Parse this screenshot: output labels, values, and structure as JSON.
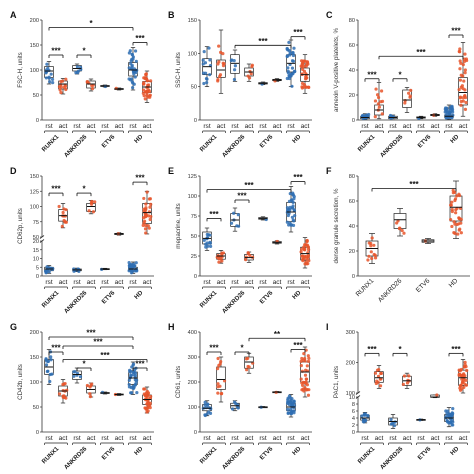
{
  "colors": {
    "rst": "#2f6fb3",
    "act": "#e8552a",
    "bar": "#111111"
  },
  "chart_data": [
    {
      "letter": "A",
      "type": "box",
      "ylabel": "FSC-H, units",
      "ylim": [
        0,
        200
      ],
      "yticks": [
        "0",
        "50",
        "100",
        "150",
        "200"
      ],
      "break": null,
      "categories": [
        "rst",
        "act",
        "rst",
        "act",
        "rst",
        "act",
        "rst",
        "act"
      ],
      "groups": [
        "RUNX1",
        "ANKRD26",
        "ETV6",
        "HD"
      ],
      "series": [
        {
          "name": "rst",
          "med": 98,
          "q1": 85,
          "q3": 107,
          "min": 72,
          "max": 117,
          "n": 14
        },
        {
          "name": "act",
          "med": 72,
          "q1": 62,
          "q3": 78,
          "min": 52,
          "max": 83,
          "n": 12
        },
        {
          "name": "rst",
          "med": 103,
          "q1": 98,
          "q3": 109,
          "min": 92,
          "max": 112,
          "n": 6
        },
        {
          "name": "act",
          "med": 72,
          "q1": 64,
          "q3": 78,
          "min": 58,
          "max": 82,
          "n": 6
        },
        {
          "name": "rst",
          "med": 68,
          "q1": 67,
          "q3": 69,
          "min": 66,
          "max": 70,
          "n": 1
        },
        {
          "name": "act",
          "med": 62,
          "q1": 61,
          "q3": 63,
          "min": 60,
          "max": 64,
          "n": 1
        },
        {
          "name": "rst",
          "med": 100,
          "q1": 88,
          "q3": 115,
          "min": 60,
          "max": 145,
          "n": 34
        },
        {
          "name": "act",
          "med": 66,
          "q1": 55,
          "q3": 77,
          "min": 35,
          "max": 98,
          "n": 34
        }
      ],
      "brackets": [
        {
          "from": 0,
          "to": 1,
          "label": "***",
          "y": 130
        },
        {
          "from": 2,
          "to": 3,
          "label": "*",
          "y": 130
        },
        {
          "from": 6,
          "to": 7,
          "label": "***",
          "y": 155
        },
        {
          "from": 0,
          "to": 6,
          "label": "*",
          "y": 185
        }
      ]
    },
    {
      "letter": "B",
      "type": "box",
      "ylabel": "SSC-H, units",
      "ylim": [
        0,
        150
      ],
      "yticks": [
        "0",
        "50",
        "100",
        "150"
      ],
      "break": null,
      "categories": [
        "rst",
        "act",
        "rst",
        "act",
        "rst",
        "act",
        "rst",
        "act"
      ],
      "groups": [
        "RUNX1",
        "ANKRD26",
        "ETV6",
        "HD"
      ],
      "series": [
        {
          "name": "rst",
          "med": 80,
          "q1": 68,
          "q3": 92,
          "min": 50,
          "max": 110,
          "n": 14
        },
        {
          "name": "act",
          "med": 75,
          "q1": 64,
          "q3": 90,
          "min": 40,
          "max": 135,
          "n": 12
        },
        {
          "name": "rst",
          "med": 85,
          "q1": 70,
          "q3": 98,
          "min": 58,
          "max": 105,
          "n": 6
        },
        {
          "name": "act",
          "med": 72,
          "q1": 66,
          "q3": 78,
          "min": 58,
          "max": 84,
          "n": 6
        },
        {
          "name": "rst",
          "med": 55,
          "q1": 54,
          "q3": 56,
          "min": 53,
          "max": 57,
          "n": 1
        },
        {
          "name": "act",
          "med": 60,
          "q1": 59,
          "q3": 61,
          "min": 58,
          "max": 62,
          "n": 1
        },
        {
          "name": "rst",
          "med": 85,
          "q1": 72,
          "q3": 98,
          "min": 50,
          "max": 120,
          "n": 34
        },
        {
          "name": "act",
          "med": 68,
          "q1": 58,
          "q3": 78,
          "min": 40,
          "max": 98,
          "n": 34
        }
      ],
      "brackets": [
        {
          "from": 2,
          "to": 6,
          "label": "***",
          "y": 112
        },
        {
          "from": 6,
          "to": 7,
          "label": "***",
          "y": 125
        }
      ]
    },
    {
      "letter": "C",
      "type": "box",
      "ylabel": "annexin V-positive platelets, %",
      "ylim": [
        0,
        80
      ],
      "yticks": [
        "0",
        "20",
        "40",
        "60",
        "80"
      ],
      "break": null,
      "categories": [
        "rst",
        "act",
        "rst",
        "act",
        "rst",
        "act",
        "rst",
        "act"
      ],
      "groups": [
        "RUNX1",
        "ANKRD26",
        "ETV6",
        "HD"
      ],
      "series": [
        {
          "name": "rst",
          "med": 2,
          "q1": 1,
          "q3": 3,
          "min": 0.5,
          "max": 5,
          "n": 14
        },
        {
          "name": "act",
          "med": 8,
          "q1": 4,
          "q3": 12,
          "min": 1,
          "max": 30,
          "n": 12
        },
        {
          "name": "rst",
          "med": 2,
          "q1": 1,
          "q3": 3,
          "min": 1,
          "max": 4,
          "n": 6
        },
        {
          "name": "act",
          "med": 16,
          "q1": 10,
          "q3": 24,
          "min": 6,
          "max": 26,
          "n": 6
        },
        {
          "name": "rst",
          "med": 2,
          "q1": 1.5,
          "q3": 2.5,
          "min": 1,
          "max": 3,
          "n": 1
        },
        {
          "name": "act",
          "med": 4,
          "q1": 3.5,
          "q3": 4.5,
          "min": 3,
          "max": 5,
          "n": 1
        },
        {
          "name": "rst",
          "med": 3,
          "q1": 2,
          "q3": 4,
          "min": 0.5,
          "max": 12,
          "n": 34
        },
        {
          "name": "act",
          "med": 22,
          "q1": 12,
          "q3": 34,
          "min": 3,
          "max": 62,
          "n": 34
        }
      ],
      "brackets": [
        {
          "from": 0,
          "to": 1,
          "label": "***",
          "y": 33
        },
        {
          "from": 2,
          "to": 3,
          "label": "*",
          "y": 33
        },
        {
          "from": 6,
          "to": 7,
          "label": "***",
          "y": 68
        },
        {
          "from": 1,
          "to": 7,
          "label": "***",
          "y": 51
        }
      ]
    },
    {
      "letter": "D",
      "type": "box",
      "ylabel": "CD62p, units",
      "ylim": [
        0,
        150
      ],
      "yticks": [
        "0",
        "5",
        "10",
        "15",
        "20",
        "50",
        "75",
        "100",
        "125",
        "150"
      ],
      "break": {
        "low": 20,
        "high": 50
      },
      "categories": [
        "rst",
        "act",
        "rst",
        "act",
        "rst",
        "act",
        "rst",
        "act"
      ],
      "groups": [
        "RUNX1",
        "ANKRD26",
        "ETV6",
        "HD"
      ],
      "series": [
        {
          "name": "rst",
          "med": 4,
          "q1": 3,
          "q3": 5,
          "min": 1.5,
          "max": 6,
          "n": 14
        },
        {
          "name": "act",
          "med": 85,
          "q1": 76,
          "q3": 95,
          "min": 65,
          "max": 105,
          "n": 12
        },
        {
          "name": "rst",
          "med": 3.5,
          "q1": 3,
          "q3": 4,
          "min": 2.5,
          "max": 4.5,
          "n": 6
        },
        {
          "name": "act",
          "med": 100,
          "q1": 92,
          "q3": 105,
          "min": 88,
          "max": 110,
          "n": 6
        },
        {
          "name": "rst",
          "med": 4,
          "q1": 3.8,
          "q3": 4.2,
          "min": 3.6,
          "max": 4.4,
          "n": 1
        },
        {
          "name": "act",
          "med": 55,
          "q1": 54,
          "q3": 56,
          "min": 53,
          "max": 57,
          "n": 1
        },
        {
          "name": "rst",
          "med": 4,
          "q1": 3,
          "q3": 5,
          "min": 1.5,
          "max": 8,
          "n": 34
        },
        {
          "name": "act",
          "med": 90,
          "q1": 72,
          "q3": 105,
          "min": 55,
          "max": 125,
          "n": 34
        }
      ],
      "brackets": [
        {
          "from": 0,
          "to": 1,
          "label": "***",
          "y": 122
        },
        {
          "from": 2,
          "to": 3,
          "label": "*",
          "y": 122
        },
        {
          "from": 6,
          "to": 7,
          "label": "***",
          "y": 140
        }
      ]
    },
    {
      "letter": "E",
      "type": "box",
      "ylabel": "mepacrine, units",
      "ylim": [
        0,
        125
      ],
      "yticks": [
        "0",
        "25",
        "50",
        "75",
        "100",
        "125"
      ],
      "break": null,
      "categories": [
        "rst",
        "act",
        "rst",
        "act",
        "rst",
        "act",
        "rst",
        "act"
      ],
      "groups": [
        "RUNX1",
        "ANKRD26",
        "ETV6",
        "HD"
      ],
      "series": [
        {
          "name": "rst",
          "med": 47,
          "q1": 40,
          "q3": 55,
          "min": 32,
          "max": 60,
          "n": 14
        },
        {
          "name": "act",
          "med": 25,
          "q1": 21,
          "q3": 28,
          "min": 16,
          "max": 32,
          "n": 12
        },
        {
          "name": "rst",
          "med": 70,
          "q1": 62,
          "q3": 78,
          "min": 56,
          "max": 85,
          "n": 6
        },
        {
          "name": "act",
          "med": 23,
          "q1": 20,
          "q3": 27,
          "min": 17,
          "max": 30,
          "n": 6
        },
        {
          "name": "rst",
          "med": 72,
          "q1": 71,
          "q3": 73,
          "min": 70,
          "max": 74,
          "n": 1
        },
        {
          "name": "act",
          "med": 42,
          "q1": 41,
          "q3": 43,
          "min": 40,
          "max": 44,
          "n": 1
        },
        {
          "name": "rst",
          "med": 80,
          "q1": 68,
          "q3": 92,
          "min": 55,
          "max": 112,
          "n": 34
        },
        {
          "name": "act",
          "med": 28,
          "q1": 20,
          "q3": 36,
          "min": 10,
          "max": 48,
          "n": 34
        }
      ],
      "brackets": [
        {
          "from": 0,
          "to": 1,
          "label": "***",
          "y": 72
        },
        {
          "from": 2,
          "to": 3,
          "label": "***",
          "y": 95
        },
        {
          "from": 6,
          "to": 7,
          "label": "***",
          "y": 118
        },
        {
          "from": 0,
          "to": 6,
          "label": "***",
          "y": 108
        }
      ]
    },
    {
      "letter": "F",
      "type": "box",
      "ylabel": "dense granule secretion, %",
      "ylim": [
        0,
        80
      ],
      "yticks": [
        "0",
        "20",
        "40",
        "60",
        "80"
      ],
      "break": null,
      "categories": [
        "RUNX1",
        "ANKRD26",
        "ETV6",
        "HD"
      ],
      "groups": [],
      "series": [
        {
          "name": "RUNX1",
          "med": 22,
          "q1": 16,
          "q3": 28,
          "min": 10,
          "max": 34,
          "n": 12
        },
        {
          "name": "ANKRD26",
          "med": 45,
          "q1": 38,
          "q3": 50,
          "min": 32,
          "max": 54,
          "n": 6
        },
        {
          "name": "ETV6",
          "med": 28,
          "q1": 27,
          "q3": 29,
          "min": 26,
          "max": 30,
          "n": 1
        },
        {
          "name": "HD",
          "med": 55,
          "q1": 44,
          "q3": 64,
          "min": 30,
          "max": 76,
          "n": 34
        }
      ],
      "brackets": [
        {
          "from": 0,
          "to": 3,
          "label": "***",
          "y": 70
        }
      ]
    },
    {
      "letter": "G",
      "type": "box",
      "ylabel": "CD42b, units",
      "ylim": [
        0,
        200
      ],
      "yticks": [
        "0",
        "50",
        "100",
        "150",
        "200"
      ],
      "break": null,
      "categories": [
        "rst",
        "act",
        "rst",
        "act",
        "rst",
        "act",
        "rst",
        "act"
      ],
      "groups": [
        "RUNX1",
        "ANKRD26",
        "ETV6",
        "HD"
      ],
      "series": [
        {
          "name": "rst",
          "med": 130,
          "q1": 115,
          "q3": 145,
          "min": 95,
          "max": 165,
          "n": 14
        },
        {
          "name": "act",
          "med": 82,
          "q1": 72,
          "q3": 92,
          "min": 58,
          "max": 105,
          "n": 12
        },
        {
          "name": "rst",
          "med": 115,
          "q1": 105,
          "q3": 122,
          "min": 98,
          "max": 128,
          "n": 6
        },
        {
          "name": "act",
          "med": 85,
          "q1": 78,
          "q3": 92,
          "min": 70,
          "max": 98,
          "n": 6
        },
        {
          "name": "rst",
          "med": 78,
          "q1": 77,
          "q3": 79,
          "min": 76,
          "max": 80,
          "n": 1
        },
        {
          "name": "act",
          "med": 75,
          "q1": 74,
          "q3": 76,
          "min": 73,
          "max": 77,
          "n": 1
        },
        {
          "name": "rst",
          "med": 108,
          "q1": 95,
          "q3": 120,
          "min": 75,
          "max": 140,
          "n": 34
        },
        {
          "name": "act",
          "med": 65,
          "q1": 55,
          "q3": 74,
          "min": 38,
          "max": 90,
          "n": 34
        }
      ],
      "brackets": [
        {
          "from": 0,
          "to": 1,
          "label": "***",
          "y": 160
        },
        {
          "from": 0,
          "to": 6,
          "label": "***",
          "y": 190
        },
        {
          "from": 1,
          "to": 6,
          "label": "***",
          "y": 172
        },
        {
          "from": 1,
          "to": 7,
          "label": "***",
          "y": 145
        },
        {
          "from": 2,
          "to": 3,
          "label": "*",
          "y": 128
        },
        {
          "from": 6,
          "to": 7,
          "label": "***",
          "y": 128
        }
      ]
    },
    {
      "letter": "H",
      "type": "box",
      "ylabel": "CD61, units",
      "ylim": [
        0,
        400
      ],
      "yticks": [
        "0",
        "100",
        "200",
        "300",
        "400"
      ],
      "break": null,
      "categories": [
        "rst",
        "act",
        "rst",
        "act",
        "rst",
        "act",
        "rst",
        "act"
      ],
      "groups": [
        "RUNX1",
        "ANKRD26",
        "ETV6",
        "HD"
      ],
      "series": [
        {
          "name": "rst",
          "med": 95,
          "q1": 85,
          "q3": 110,
          "min": 65,
          "max": 125,
          "n": 14
        },
        {
          "name": "act",
          "med": 210,
          "q1": 170,
          "q3": 260,
          "min": 120,
          "max": 300,
          "n": 12
        },
        {
          "name": "rst",
          "med": 105,
          "q1": 95,
          "q3": 115,
          "min": 85,
          "max": 125,
          "n": 6
        },
        {
          "name": "act",
          "med": 280,
          "q1": 255,
          "q3": 300,
          "min": 235,
          "max": 315,
          "n": 6
        },
        {
          "name": "rst",
          "med": 100,
          "q1": 99,
          "q3": 101,
          "min": 98,
          "max": 102,
          "n": 1
        },
        {
          "name": "act",
          "med": 160,
          "q1": 159,
          "q3": 161,
          "min": 158,
          "max": 162,
          "n": 1
        },
        {
          "name": "rst",
          "med": 100,
          "q1": 85,
          "q3": 115,
          "min": 60,
          "max": 150,
          "n": 34
        },
        {
          "name": "act",
          "med": 240,
          "q1": 200,
          "q3": 280,
          "min": 140,
          "max": 340,
          "n": 34
        }
      ],
      "brackets": [
        {
          "from": 0,
          "to": 1,
          "label": "***",
          "y": 320
        },
        {
          "from": 2,
          "to": 3,
          "label": "*",
          "y": 320
        },
        {
          "from": 3,
          "to": 7,
          "label": "**",
          "y": 375
        },
        {
          "from": 6,
          "to": 7,
          "label": "***",
          "y": 330
        }
      ]
    },
    {
      "letter": "I",
      "type": "box",
      "ylabel": "PAC1, units",
      "ylim": [
        0,
        300
      ],
      "yticks": [
        "0",
        "2",
        "4",
        "6",
        "8",
        "10",
        "100",
        "200",
        "300"
      ],
      "break": {
        "low": 10,
        "high": 100
      },
      "categories": [
        "rst",
        "act",
        "rst",
        "act",
        "rst",
        "act",
        "rst",
        "act"
      ],
      "groups": [
        "RUNX1",
        "ANKRD26",
        "ETV6",
        "HD"
      ],
      "series": [
        {
          "name": "rst",
          "med": 4,
          "q1": 3.4,
          "q3": 4.8,
          "min": 2.6,
          "max": 5.6,
          "n": 14
        },
        {
          "name": "act",
          "med": 150,
          "q1": 135,
          "q3": 170,
          "min": 115,
          "max": 190,
          "n": 12
        },
        {
          "name": "rst",
          "med": 3,
          "q1": 2,
          "q3": 4,
          "min": 1,
          "max": 5,
          "n": 6
        },
        {
          "name": "act",
          "med": 140,
          "q1": 125,
          "q3": 155,
          "min": 115,
          "max": 165,
          "n": 6
        },
        {
          "name": "rst",
          "med": 3.5,
          "q1": 3.4,
          "q3": 3.6,
          "min": 3.3,
          "max": 3.7,
          "n": 1
        },
        {
          "name": "act",
          "med": 10,
          "q1": 9.9,
          "q3": 10.1,
          "min": 9.8,
          "max": 10.2,
          "n": 1
        },
        {
          "name": "rst",
          "med": 4,
          "q1": 3,
          "q3": 5,
          "min": 1.5,
          "max": 7,
          "n": 34
        },
        {
          "name": "act",
          "med": 150,
          "q1": 125,
          "q3": 175,
          "min": 100,
          "max": 210,
          "n": 34
        }
      ],
      "brackets": [
        {
          "from": 0,
          "to": 1,
          "label": "***",
          "y": 230
        },
        {
          "from": 2,
          "to": 3,
          "label": "*",
          "y": 230
        },
        {
          "from": 6,
          "to": 7,
          "label": "***",
          "y": 230
        }
      ]
    }
  ]
}
